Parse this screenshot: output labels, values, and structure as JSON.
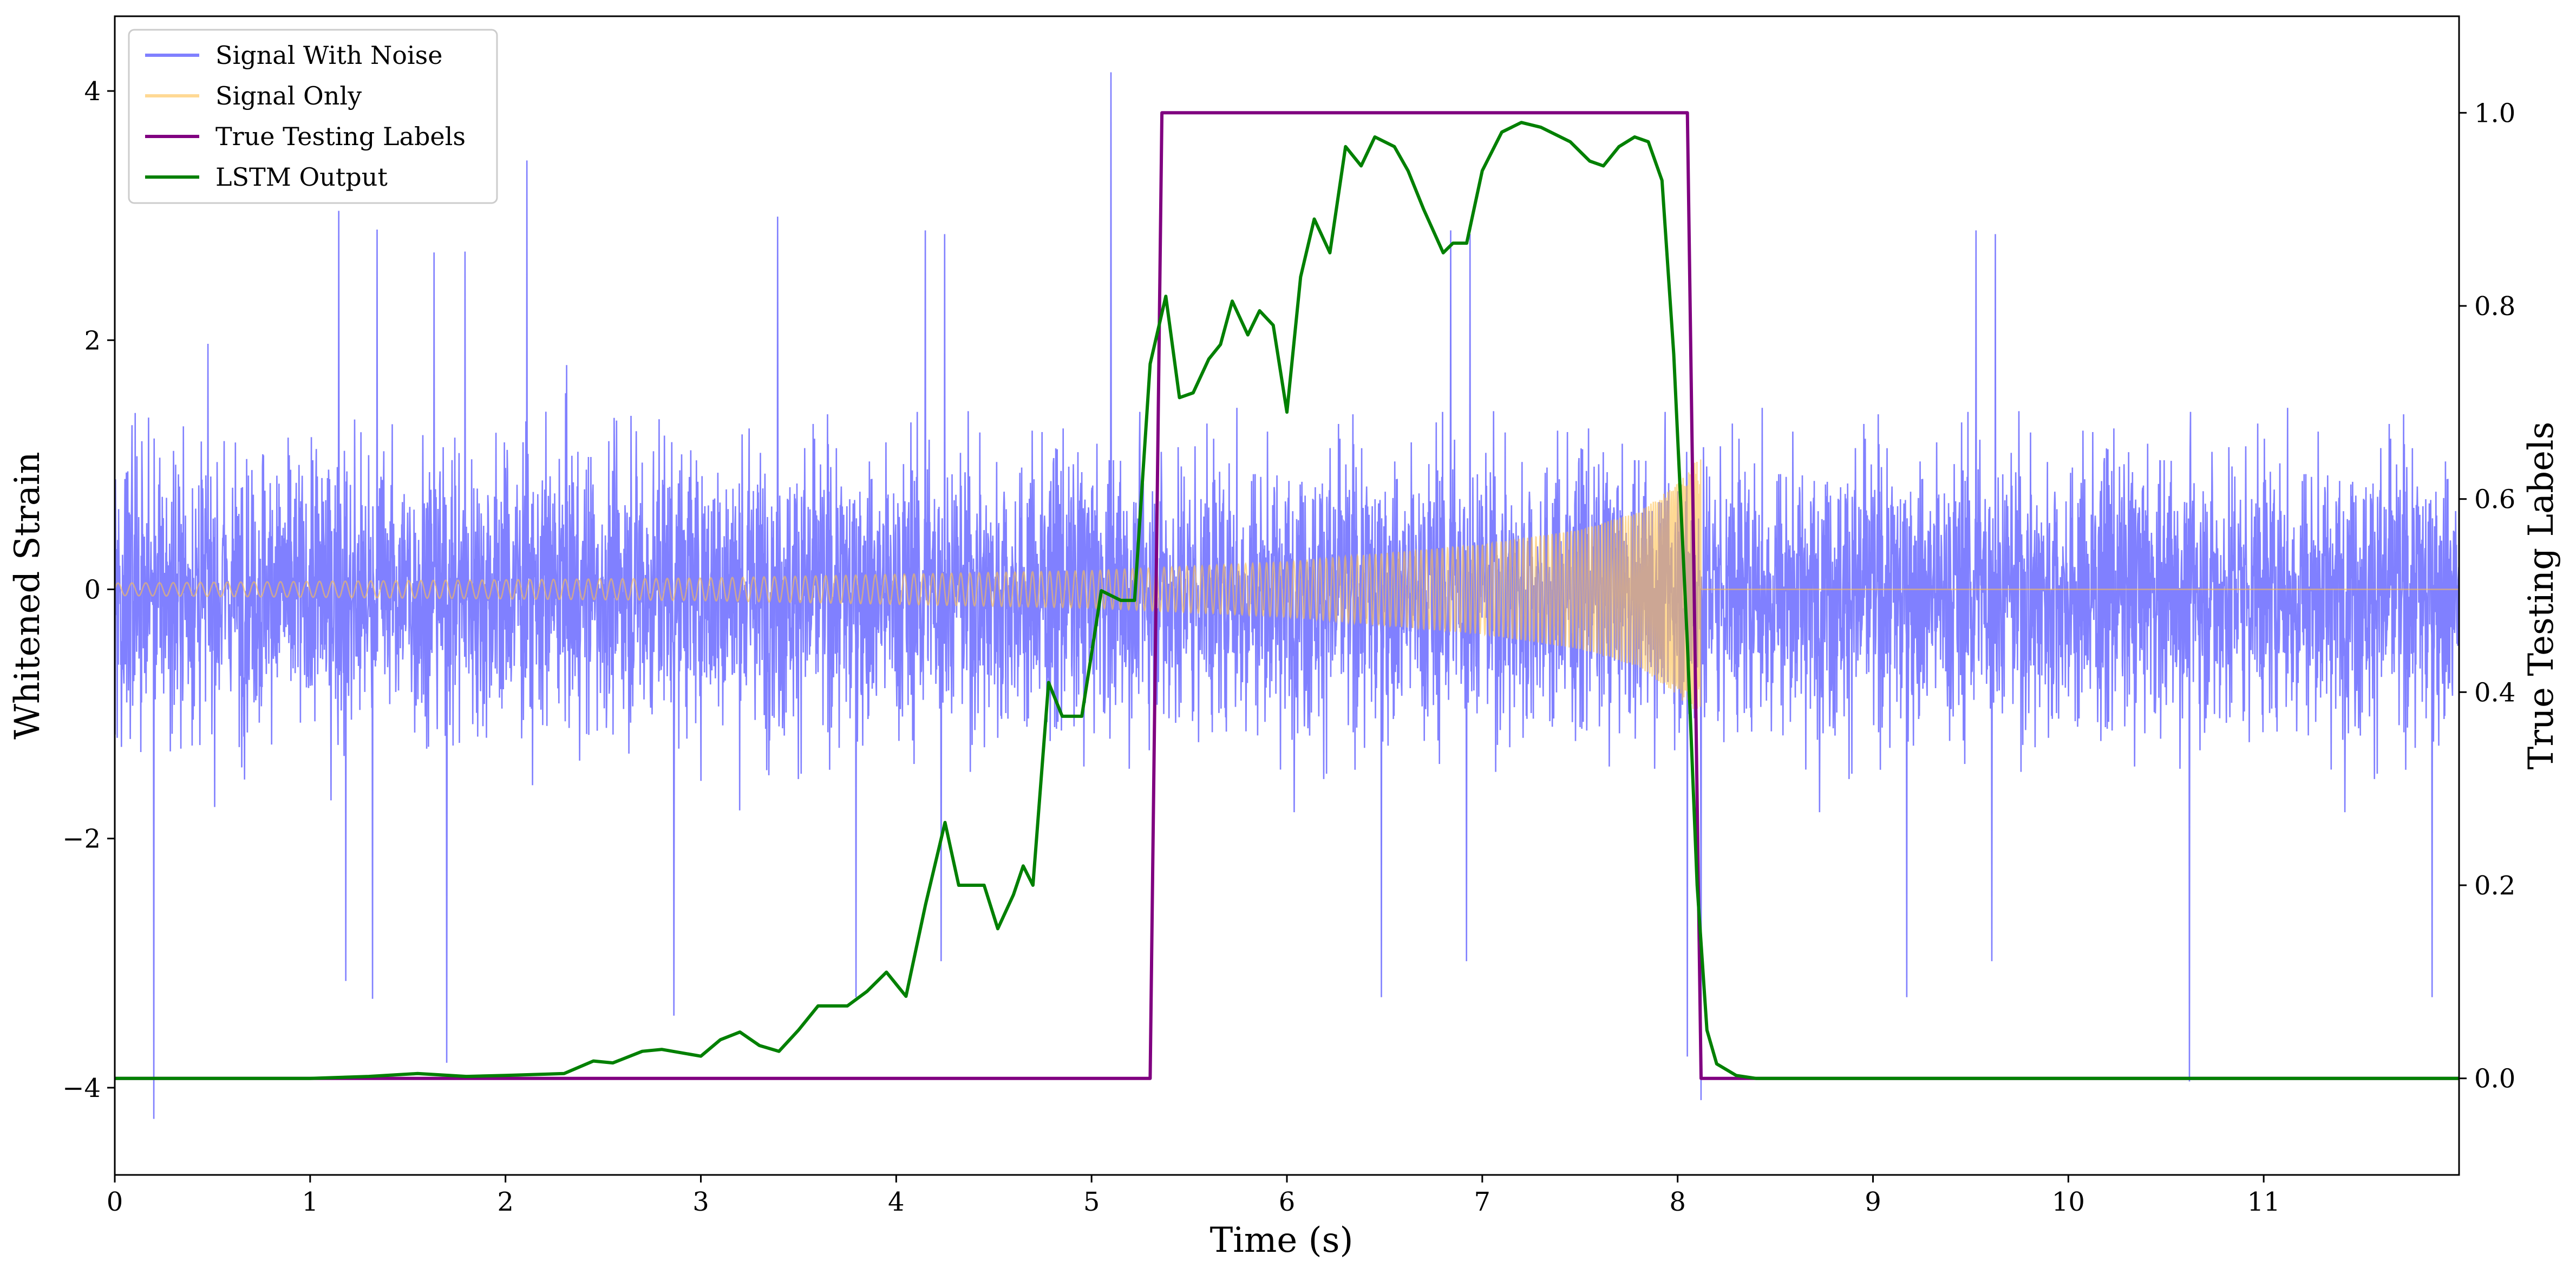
{
  "chart_data": {
    "type": "line",
    "xlabel": "Time (s)",
    "ylabel": "Whitened Strain",
    "y2label": "True Testing Labels",
    "xlim": [
      0,
      12
    ],
    "ylim": [
      -4.7,
      4.6
    ],
    "y2lim": [
      -0.1,
      1.1
    ],
    "x_ticks": [
      0,
      1,
      2,
      3,
      4,
      5,
      6,
      7,
      8,
      9,
      10,
      11
    ],
    "x_tick_labels": [
      "0",
      "1",
      "2",
      "3",
      "4",
      "5",
      "6",
      "7",
      "8",
      "9",
      "10",
      "11"
    ],
    "y_ticks": [
      -4,
      -2,
      0,
      2,
      4
    ],
    "y_tick_labels": [
      "−4",
      "−2",
      "0",
      "2",
      "4"
    ],
    "y2_ticks": [
      0.0,
      0.2,
      0.4,
      0.6,
      0.8,
      1.0
    ],
    "y2_tick_labels": [
      "0.0",
      "0.2",
      "0.4",
      "0.6",
      "0.8",
      "1.0"
    ],
    "legend_position": "top-left",
    "grid": false,
    "series": [
      {
        "name": "Signal With Noise",
        "axis": "left",
        "color": "#8080ff",
        "style": "noise",
        "typical_range": [
          -2.6,
          2.6
        ],
        "extremes": [
          {
            "x": 0.2,
            "y": -4.25
          },
          {
            "x": 1.7,
            "y": -3.8
          },
          {
            "x": 5.1,
            "y": 4.15
          },
          {
            "x": 8.05,
            "y": -3.75
          },
          {
            "x": 8.12,
            "y": -4.1
          },
          {
            "x": 10.62,
            "y": -3.95
          }
        ]
      },
      {
        "name": "Signal Only",
        "axis": "left",
        "color": "#ffc04d",
        "style": "chirp",
        "amplitude_points": [
          [
            0.0,
            0.05
          ],
          [
            3.0,
            0.09
          ],
          [
            5.0,
            0.15
          ],
          [
            6.0,
            0.22
          ],
          [
            7.0,
            0.36
          ],
          [
            7.5,
            0.48
          ],
          [
            7.8,
            0.62
          ],
          [
            8.0,
            0.85
          ],
          [
            8.12,
            1.08
          ]
        ],
        "end_time": 8.12
      },
      {
        "name": "True Testing Labels",
        "axis": "right",
        "color": "#800080",
        "x": [
          0.0,
          5.3,
          5.36,
          8.05,
          8.12,
          12.0
        ],
        "y": [
          0,
          0,
          1,
          1,
          0,
          0
        ]
      },
      {
        "name": "LSTM Output",
        "axis": "right",
        "color": "#008000",
        "x": [
          0.0,
          1.0,
          1.3,
          1.55,
          1.8,
          2.0,
          2.3,
          2.45,
          2.55,
          2.7,
          2.8,
          3.0,
          3.1,
          3.2,
          3.3,
          3.4,
          3.5,
          3.6,
          3.75,
          3.85,
          3.95,
          4.05,
          4.15,
          4.25,
          4.32,
          4.38,
          4.45,
          4.52,
          4.6,
          4.65,
          4.7,
          4.78,
          4.85,
          4.95,
          5.05,
          5.15,
          5.22,
          5.3,
          5.38,
          5.45,
          5.52,
          5.6,
          5.66,
          5.72,
          5.8,
          5.86,
          5.93,
          6.0,
          6.07,
          6.14,
          6.22,
          6.3,
          6.38,
          6.45,
          6.5,
          6.55,
          6.62,
          6.7,
          6.8,
          6.85,
          6.92,
          7.0,
          7.1,
          7.2,
          7.3,
          7.45,
          7.55,
          7.62,
          7.7,
          7.78,
          7.85,
          7.92,
          7.98,
          8.05,
          8.1,
          8.15,
          8.2,
          8.3,
          8.4,
          12.0
        ],
        "y": [
          0.0,
          0.0,
          0.002,
          0.005,
          0.002,
          0.003,
          0.005,
          0.018,
          0.016,
          0.028,
          0.03,
          0.023,
          0.04,
          0.048,
          0.034,
          0.028,
          0.05,
          0.075,
          0.075,
          0.09,
          0.11,
          0.085,
          0.18,
          0.265,
          0.2,
          0.2,
          0.2,
          0.155,
          0.19,
          0.22,
          0.2,
          0.41,
          0.375,
          0.375,
          0.505,
          0.495,
          0.495,
          0.74,
          0.81,
          0.705,
          0.71,
          0.745,
          0.76,
          0.805,
          0.77,
          0.795,
          0.78,
          0.69,
          0.83,
          0.89,
          0.855,
          0.965,
          0.945,
          0.975,
          0.97,
          0.965,
          0.94,
          0.9,
          0.855,
          0.865,
          0.865,
          0.94,
          0.98,
          0.99,
          0.985,
          0.97,
          0.95,
          0.945,
          0.965,
          0.975,
          0.97,
          0.93,
          0.75,
          0.45,
          0.2,
          0.05,
          0.015,
          0.003,
          0.0,
          0.0
        ]
      }
    ]
  }
}
